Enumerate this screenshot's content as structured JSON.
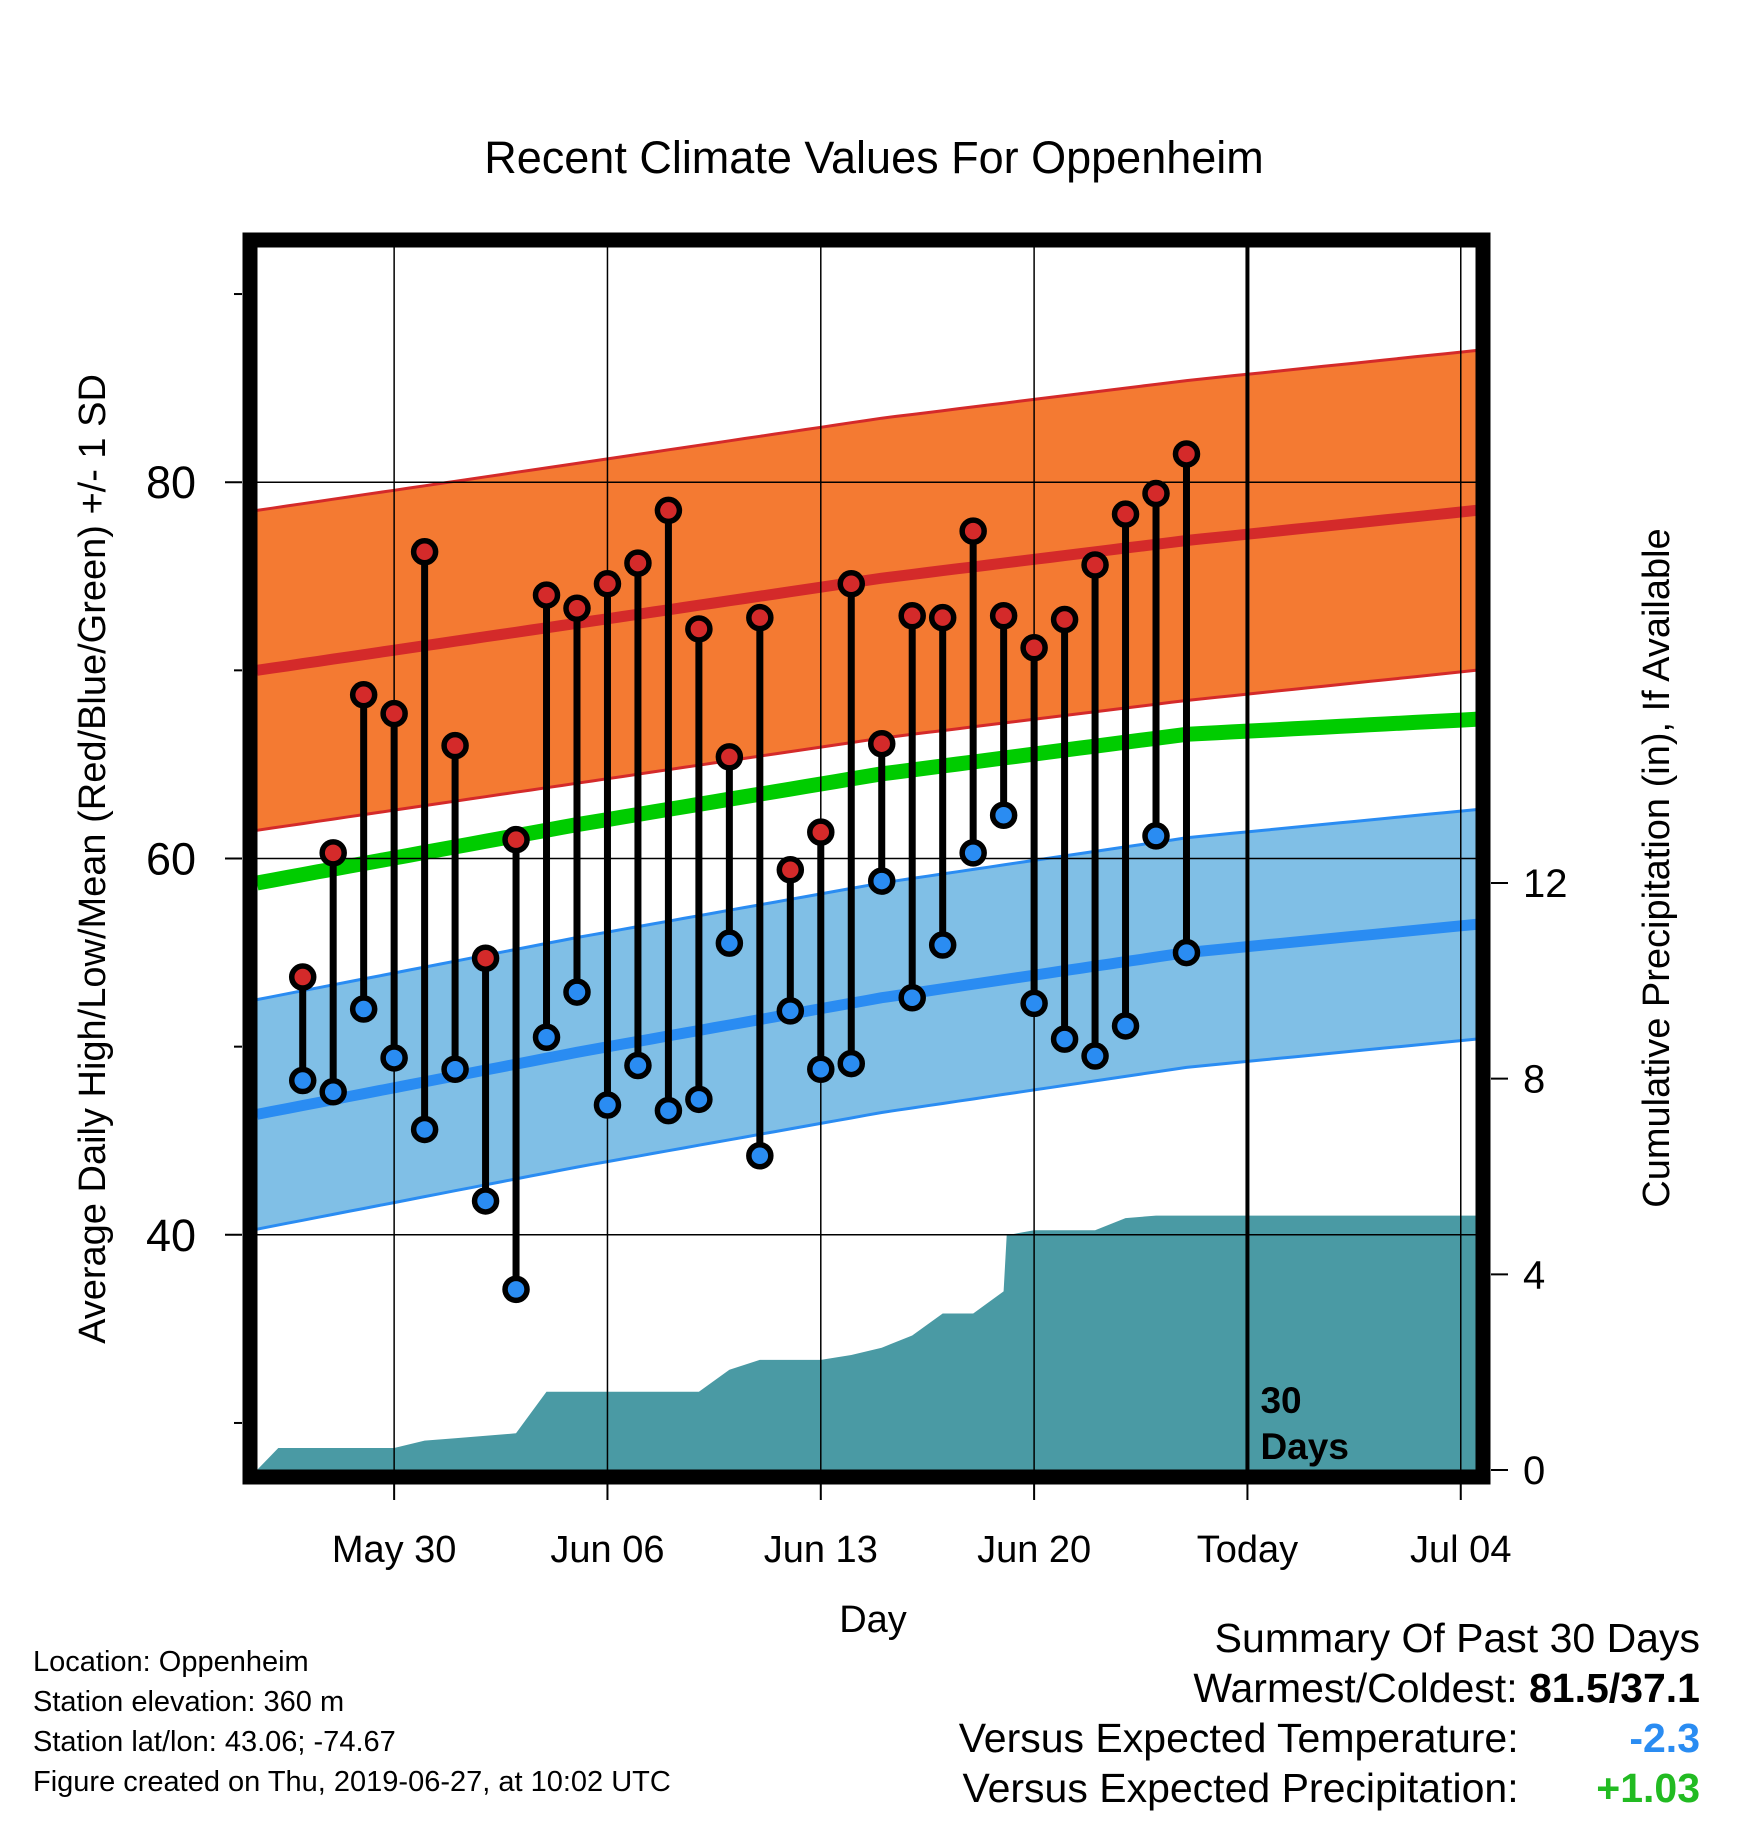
{
  "chart_data": {
    "type": "line",
    "title": "Recent Climate Values For Oppenheim",
    "xlabel": "Day",
    "ylabel": "Average Daily High/Low/Mean (Red/Blue/Green) +/- 1 SD",
    "ylabel_right": "Cumulative Precipitation (in), If Available",
    "x_ticks": [
      "May 30",
      "Jun 06",
      "Jun 13",
      "Jun 20",
      "Today",
      "Jul 04"
    ],
    "y_ticks": [
      "40",
      "60",
      "80"
    ],
    "y2_ticks": [
      "0",
      "4",
      "8",
      "12"
    ],
    "ylim": [
      27.5,
      92.5
    ],
    "y2lim": [
      0,
      25
    ],
    "days_x": [
      -29,
      -28,
      -27,
      -26,
      -25,
      -24,
      -23,
      -22,
      -21,
      -20,
      -19,
      -18,
      -17,
      -16,
      -15,
      -14,
      -13,
      -12,
      -11,
      -10,
      -9,
      -8,
      -7,
      -6,
      -5,
      -4,
      -3,
      -2,
      -1,
      0
    ],
    "x_range_days": [
      -30.5,
      9.5
    ],
    "x_tick_days": [
      -26,
      -19,
      -12,
      -5,
      2,
      9
    ],
    "daily_high": [
      53.7,
      60.3,
      68.7,
      67.7,
      76.3,
      66.0,
      54.7,
      61.0,
      74.0,
      73.3,
      74.6,
      75.7,
      78.5,
      72.2,
      65.4,
      72.8,
      59.4,
      61.4,
      74.6,
      66.1,
      72.9,
      72.8,
      77.4,
      72.9,
      71.2,
      72.7,
      75.6,
      78.3,
      79.4,
      81.5
    ],
    "daily_low": [
      48.2,
      47.6,
      52.0,
      49.4,
      45.6,
      48.8,
      41.8,
      37.1,
      50.5,
      52.9,
      46.9,
      49.0,
      46.6,
      47.2,
      55.5,
      44.2,
      51.9,
      48.8,
      49.1,
      58.8,
      52.6,
      55.4,
      60.3,
      62.3,
      52.3,
      50.4,
      49.5,
      51.1,
      61.2,
      55.0
    ],
    "normal_high": {
      "x": [
        -30.5,
        -20,
        -10,
        0,
        9.5
      ],
      "mean": [
        70.0,
        72.5,
        74.9,
        76.9,
        78.5
      ],
      "sd": 8.5
    },
    "normal_low": {
      "x": [
        -30.5,
        -20,
        -10,
        0,
        9.5
      ],
      "mean": [
        46.4,
        49.7,
        52.6,
        55.0,
        56.5
      ],
      "sd": 6.1
    },
    "normal_mean": {
      "x": [
        -30.5,
        -20,
        -10,
        0,
        9.5
      ],
      "values": [
        58.7,
        61.8,
        64.5,
        66.6,
        67.4
      ]
    },
    "precip": {
      "x": [
        -30.5,
        -29.8,
        -26,
        -25,
        -24,
        -22,
        -21,
        -20,
        -16,
        -15,
        -14,
        -12,
        -11,
        -10,
        -9,
        -8,
        -7,
        -6,
        -5.9,
        -5,
        -4,
        -3,
        -2,
        -1,
        9.5
      ],
      "values": [
        0,
        0.45,
        0.45,
        0.6,
        0.65,
        0.75,
        1.6,
        1.6,
        1.6,
        2.05,
        2.25,
        2.25,
        2.35,
        2.5,
        2.75,
        3.2,
        3.2,
        3.65,
        4.8,
        4.9,
        4.9,
        4.9,
        5.15,
        5.2,
        5.2
      ]
    },
    "today_label": [
      "30",
      "Days"
    ],
    "colors": {
      "high": "#f47a32",
      "high_line": "#d42a2a",
      "low": "#80bfe6",
      "low_line": "#2a8cf2",
      "mean": "#00cc00",
      "precip": "#4a9aa4",
      "high_dot": "#d42a2a",
      "low_dot": "#2a8cf2"
    }
  },
  "info": {
    "location": "Location: Oppenheim",
    "elevation": "Station elevation: 360 m",
    "latlon": "Station lat/lon: 43.06; -74.67",
    "created": "Figure created on Thu, 2019-06-27, at 10:02 UTC"
  },
  "summary": {
    "title": "Summary Of Past 30 Days",
    "warm_label": "Warmest/Coldest:",
    "warm_value": "81.5/37.1",
    "temp_label": "Versus Expected Temperature:",
    "temp_value": "-2.3",
    "temp_color": "#2a8cf2",
    "precip_label": "Versus Expected Precipitation:",
    "precip_value": "+1.03",
    "precip_color": "#22bb22"
  }
}
